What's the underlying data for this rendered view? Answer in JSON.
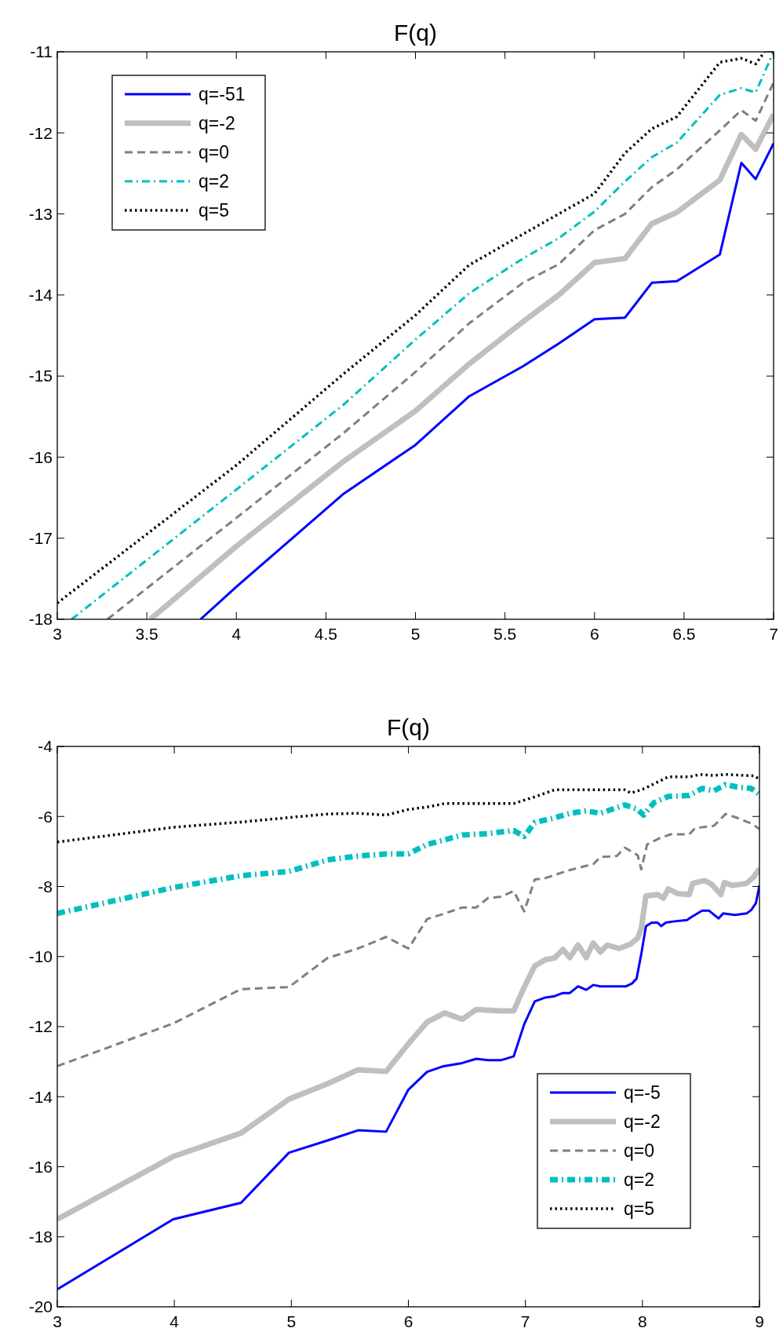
{
  "chart_data": [
    {
      "type": "line",
      "title": "F(q)",
      "xlim": [
        3,
        7
      ],
      "ylim": [
        -18,
        -11
      ],
      "xticks": [
        3,
        3.5,
        4,
        4.5,
        5,
        5.5,
        6,
        6.5,
        7
      ],
      "yticks": [
        -18,
        -17,
        -16,
        -15,
        -14,
        -13,
        -12,
        -11
      ],
      "grid": false,
      "legend": "top left",
      "series": [
        {
          "name": "q=-51",
          "color": "#0000ff",
          "line_style": "solid",
          "x": [
            3.8,
            4,
            4.6,
            5,
            5.3,
            5.6,
            5.8,
            6,
            6.17,
            6.32,
            6.46,
            6.7,
            6.82,
            6.9,
            7
          ],
          "values": [
            -18,
            -17.6,
            -16.45,
            -15.85,
            -15.25,
            -14.88,
            -14.6,
            -14.3,
            -14.28,
            -13.85,
            -13.83,
            -13.5,
            -12.37,
            -12.57,
            -12.13
          ]
        },
        {
          "name": "q=-2",
          "color": "#bfbfbf",
          "line_style": "solid",
          "x": [
            3.52,
            4,
            4.6,
            5,
            5.3,
            5.6,
            5.8,
            6,
            6.17,
            6.32,
            6.46,
            6.7,
            6.82,
            6.9,
            7
          ],
          "values": [
            -18,
            -17.1,
            -16.05,
            -15.43,
            -14.85,
            -14.33,
            -14,
            -13.6,
            -13.55,
            -13.12,
            -12.98,
            -12.58,
            -12.02,
            -12.2,
            -11.77
          ]
        },
        {
          "name": "q=0",
          "color": "#808080",
          "line_style": "dashed",
          "x": [
            3.28,
            4,
            4.6,
            5,
            5.3,
            5.6,
            5.8,
            6,
            6.17,
            6.32,
            6.46,
            6.7,
            6.82,
            6.9,
            7
          ],
          "values": [
            -18,
            -16.75,
            -15.7,
            -14.95,
            -14.35,
            -13.85,
            -13.62,
            -13.2,
            -13,
            -12.67,
            -12.45,
            -11.97,
            -11.72,
            -11.85,
            -11.38
          ]
        },
        {
          "name": "q=2",
          "color": "#00bfbf",
          "line_style": "dashdot",
          "x": [
            3.08,
            4,
            4.6,
            5,
            5.3,
            5.6,
            5.8,
            6,
            6.17,
            6.32,
            6.46,
            6.7,
            6.82,
            6.9,
            7
          ],
          "values": [
            -18,
            -16.4,
            -15.35,
            -14.55,
            -13.98,
            -13.55,
            -13.3,
            -12.97,
            -12.6,
            -12.3,
            -12.12,
            -11.53,
            -11.45,
            -11.5,
            -11
          ]
        },
        {
          "name": "q=5",
          "color": "#000000",
          "line_style": "dotted",
          "x": [
            3,
            4,
            4.6,
            5,
            5.3,
            5.6,
            5.8,
            6,
            6.17,
            6.32,
            6.46,
            6.7,
            6.82,
            6.9,
            6.95
          ],
          "values": [
            -17.8,
            -16.1,
            -14.97,
            -14.25,
            -13.63,
            -13.25,
            -13,
            -12.75,
            -12.25,
            -11.95,
            -11.8,
            -11.13,
            -11.08,
            -11.15,
            -11
          ]
        }
      ]
    },
    {
      "type": "line",
      "title": "F(q)",
      "xlim": [
        3,
        9
      ],
      "ylim": [
        -20,
        -4
      ],
      "xticks": [
        3,
        4,
        5,
        6,
        7,
        8,
        9
      ],
      "yticks": [
        -20,
        -18,
        -16,
        -14,
        -12,
        -10,
        -8,
        -6,
        -4
      ],
      "grid": false,
      "legend": "bottom right",
      "series": [
        {
          "name": "q=-5",
          "color": "#0000ff",
          "line_style": "solid",
          "x": [
            3,
            3.99,
            4.57,
            4.98,
            5.31,
            5.57,
            5.81,
            6,
            6.16,
            6.3,
            6.46,
            6.58,
            6.68,
            6.79,
            6.9,
            6.99,
            7.08,
            7.17,
            7.25,
            7.32,
            7.38,
            7.45,
            7.52,
            7.58,
            7.64,
            7.86,
            7.91,
            7.95,
            7.99,
            8.03,
            8.08,
            8.13,
            8.16,
            8.2,
            8.26,
            8.38,
            8.42,
            8.51,
            8.57,
            8.65,
            8.69,
            8.79,
            8.89,
            8.93,
            8.97,
            9
          ],
          "values": [
            -19.5,
            -17.5,
            -17.03,
            -15.6,
            -15.25,
            -14.96,
            -15,
            -13.8,
            -13.29,
            -13.13,
            -13.04,
            -12.92,
            -12.96,
            -12.96,
            -12.85,
            -11.93,
            -11.28,
            -11.17,
            -11.13,
            -11.04,
            -11.04,
            -10.85,
            -10.95,
            -10.81,
            -10.85,
            -10.85,
            -10.77,
            -10.63,
            -9.93,
            -9.13,
            -9.03,
            -9.03,
            -9.13,
            -9.03,
            -9,
            -8.96,
            -8.87,
            -8.69,
            -8.69,
            -8.91,
            -8.77,
            -8.81,
            -8.77,
            -8.67,
            -8.47,
            -7.97
          ]
        },
        {
          "name": "q=-2",
          "color": "#bfbfbf",
          "line_style": "solid",
          "x": [
            3,
            3.99,
            4.57,
            4.98,
            5.31,
            5.57,
            5.81,
            6,
            6.16,
            6.31,
            6.46,
            6.58,
            6.79,
            6.9,
            6.99,
            7.08,
            7.17,
            7.25,
            7.32,
            7.38,
            7.45,
            7.52,
            7.58,
            7.64,
            7.7,
            7.8,
            7.9,
            7.96,
            7.99,
            8.03,
            8.13,
            8.18,
            8.22,
            8.3,
            8.4,
            8.43,
            8.53,
            8.59,
            8.67,
            8.7,
            8.77,
            8.89,
            8.95,
            9
          ],
          "values": [
            -17.5,
            -15.71,
            -15.04,
            -14.07,
            -13.63,
            -13.23,
            -13.28,
            -12.49,
            -11.87,
            -11.61,
            -11.79,
            -11.51,
            -11.55,
            -11.55,
            -10.87,
            -10.27,
            -10.09,
            -10.04,
            -9.8,
            -10.03,
            -9.67,
            -10.03,
            -9.61,
            -9.87,
            -9.67,
            -9.77,
            -9.64,
            -9.47,
            -9.2,
            -8.27,
            -8.23,
            -8.33,
            -8.07,
            -8.2,
            -8.23,
            -7.91,
            -7.83,
            -7.93,
            -8.23,
            -7.89,
            -7.97,
            -7.91,
            -7.73,
            -7.49
          ]
        },
        {
          "name": "q=0",
          "color": "#808080",
          "line_style": "dashed",
          "x": [
            3,
            3.99,
            4.57,
            4.98,
            5.31,
            5.57,
            5.81,
            6,
            6.16,
            6.31,
            6.46,
            6.58,
            6.68,
            6.79,
            6.9,
            6.99,
            7.08,
            7.17,
            7.25,
            7.38,
            7.45,
            7.58,
            7.64,
            7.78,
            7.85,
            7.96,
            7.99,
            8.04,
            8.14,
            8.24,
            8.4,
            8.45,
            8.61,
            8.71,
            8.81,
            8.93,
            9
          ],
          "values": [
            -13.13,
            -11.91,
            -10.93,
            -10.87,
            -10.04,
            -9.77,
            -9.44,
            -9.77,
            -8.93,
            -8.77,
            -8.6,
            -8.6,
            -8.33,
            -8.29,
            -8.13,
            -8.71,
            -7.8,
            -7.76,
            -7.67,
            -7.53,
            -7.47,
            -7.36,
            -7.16,
            -7.13,
            -6.89,
            -7.11,
            -7.51,
            -6.8,
            -6.63,
            -6.51,
            -6.51,
            -6.33,
            -6.27,
            -5.93,
            -6.04,
            -6.2,
            -6.36
          ]
        },
        {
          "name": "q=2",
          "color": "#00bfbf",
          "line_style": "dashdot",
          "x": [
            3,
            3.99,
            4.57,
            4.98,
            5.31,
            5.57,
            5.81,
            6,
            6.16,
            6.31,
            6.46,
            6.68,
            6.9,
            6.99,
            7.08,
            7.25,
            7.38,
            7.52,
            7.64,
            7.85,
            7.96,
            8.01,
            8.1,
            8.22,
            8.4,
            8.51,
            8.61,
            8.71,
            8.81,
            8.93,
            9
          ],
          "values": [
            -8.77,
            -8.03,
            -7.69,
            -7.57,
            -7.24,
            -7.13,
            -7.07,
            -7.07,
            -6.8,
            -6.67,
            -6.53,
            -6.49,
            -6.4,
            -6.57,
            -6.17,
            -6.04,
            -5.91,
            -5.84,
            -5.91,
            -5.67,
            -5.8,
            -5.96,
            -5.6,
            -5.43,
            -5.4,
            -5.2,
            -5.27,
            -5.09,
            -5.16,
            -5.2,
            -5.37
          ]
        },
        {
          "name": "q=5",
          "color": "#000000",
          "line_style": "dotted",
          "x": [
            3,
            3.99,
            4.57,
            4.98,
            5.31,
            5.57,
            5.81,
            6,
            6.16,
            6.31,
            6.9,
            7.08,
            7.25,
            7.85,
            7.9,
            7.96,
            8.02,
            8.22,
            8.4,
            8.49,
            8.61,
            8.71,
            8.89,
            8.95,
            9
          ],
          "values": [
            -6.73,
            -6.31,
            -6.16,
            -6.03,
            -5.93,
            -5.91,
            -5.96,
            -5.8,
            -5.73,
            -5.63,
            -5.63,
            -5.44,
            -5.24,
            -5.24,
            -5.33,
            -5.27,
            -5.2,
            -4.87,
            -4.87,
            -4.8,
            -4.83,
            -4.8,
            -4.83,
            -4.84,
            -4.93
          ]
        }
      ]
    }
  ]
}
